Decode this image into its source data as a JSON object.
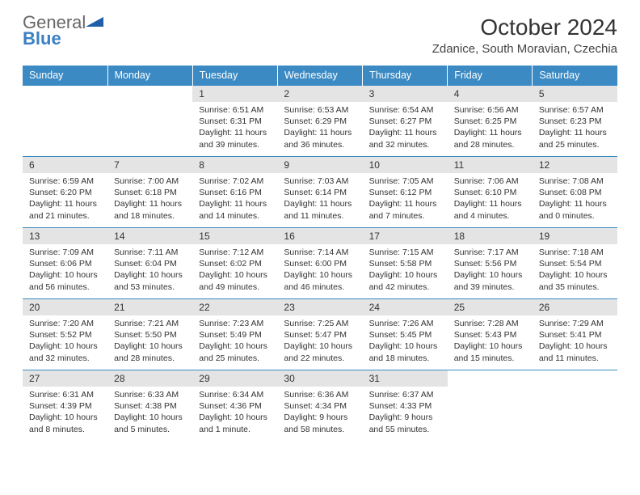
{
  "logo": {
    "text1": "General",
    "text2": "Blue"
  },
  "title": "October 2024",
  "location": "Zdanice, South Moravian, Czechia",
  "colors": {
    "header_bg": "#3b8ac4",
    "header_text": "#ffffff",
    "daynum_bg": "#e4e4e4",
    "border": "#3b8ac4",
    "logo_gray": "#666666",
    "logo_blue": "#3b7fc4"
  },
  "weekdays": [
    "Sunday",
    "Monday",
    "Tuesday",
    "Wednesday",
    "Thursday",
    "Friday",
    "Saturday"
  ],
  "weeks": [
    [
      null,
      null,
      {
        "n": "1",
        "sr": "6:51 AM",
        "ss": "6:31 PM",
        "dl": "11 hours and 39 minutes."
      },
      {
        "n": "2",
        "sr": "6:53 AM",
        "ss": "6:29 PM",
        "dl": "11 hours and 36 minutes."
      },
      {
        "n": "3",
        "sr": "6:54 AM",
        "ss": "6:27 PM",
        "dl": "11 hours and 32 minutes."
      },
      {
        "n": "4",
        "sr": "6:56 AM",
        "ss": "6:25 PM",
        "dl": "11 hours and 28 minutes."
      },
      {
        "n": "5",
        "sr": "6:57 AM",
        "ss": "6:23 PM",
        "dl": "11 hours and 25 minutes."
      }
    ],
    [
      {
        "n": "6",
        "sr": "6:59 AM",
        "ss": "6:20 PM",
        "dl": "11 hours and 21 minutes."
      },
      {
        "n": "7",
        "sr": "7:00 AM",
        "ss": "6:18 PM",
        "dl": "11 hours and 18 minutes."
      },
      {
        "n": "8",
        "sr": "7:02 AM",
        "ss": "6:16 PM",
        "dl": "11 hours and 14 minutes."
      },
      {
        "n": "9",
        "sr": "7:03 AM",
        "ss": "6:14 PM",
        "dl": "11 hours and 11 minutes."
      },
      {
        "n": "10",
        "sr": "7:05 AM",
        "ss": "6:12 PM",
        "dl": "11 hours and 7 minutes."
      },
      {
        "n": "11",
        "sr": "7:06 AM",
        "ss": "6:10 PM",
        "dl": "11 hours and 4 minutes."
      },
      {
        "n": "12",
        "sr": "7:08 AM",
        "ss": "6:08 PM",
        "dl": "11 hours and 0 minutes."
      }
    ],
    [
      {
        "n": "13",
        "sr": "7:09 AM",
        "ss": "6:06 PM",
        "dl": "10 hours and 56 minutes."
      },
      {
        "n": "14",
        "sr": "7:11 AM",
        "ss": "6:04 PM",
        "dl": "10 hours and 53 minutes."
      },
      {
        "n": "15",
        "sr": "7:12 AM",
        "ss": "6:02 PM",
        "dl": "10 hours and 49 minutes."
      },
      {
        "n": "16",
        "sr": "7:14 AM",
        "ss": "6:00 PM",
        "dl": "10 hours and 46 minutes."
      },
      {
        "n": "17",
        "sr": "7:15 AM",
        "ss": "5:58 PM",
        "dl": "10 hours and 42 minutes."
      },
      {
        "n": "18",
        "sr": "7:17 AM",
        "ss": "5:56 PM",
        "dl": "10 hours and 39 minutes."
      },
      {
        "n": "19",
        "sr": "7:18 AM",
        "ss": "5:54 PM",
        "dl": "10 hours and 35 minutes."
      }
    ],
    [
      {
        "n": "20",
        "sr": "7:20 AM",
        "ss": "5:52 PM",
        "dl": "10 hours and 32 minutes."
      },
      {
        "n": "21",
        "sr": "7:21 AM",
        "ss": "5:50 PM",
        "dl": "10 hours and 28 minutes."
      },
      {
        "n": "22",
        "sr": "7:23 AM",
        "ss": "5:49 PM",
        "dl": "10 hours and 25 minutes."
      },
      {
        "n": "23",
        "sr": "7:25 AM",
        "ss": "5:47 PM",
        "dl": "10 hours and 22 minutes."
      },
      {
        "n": "24",
        "sr": "7:26 AM",
        "ss": "5:45 PM",
        "dl": "10 hours and 18 minutes."
      },
      {
        "n": "25",
        "sr": "7:28 AM",
        "ss": "5:43 PM",
        "dl": "10 hours and 15 minutes."
      },
      {
        "n": "26",
        "sr": "7:29 AM",
        "ss": "5:41 PM",
        "dl": "10 hours and 11 minutes."
      }
    ],
    [
      {
        "n": "27",
        "sr": "6:31 AM",
        "ss": "4:39 PM",
        "dl": "10 hours and 8 minutes."
      },
      {
        "n": "28",
        "sr": "6:33 AM",
        "ss": "4:38 PM",
        "dl": "10 hours and 5 minutes."
      },
      {
        "n": "29",
        "sr": "6:34 AM",
        "ss": "4:36 PM",
        "dl": "10 hours and 1 minute."
      },
      {
        "n": "30",
        "sr": "6:36 AM",
        "ss": "4:34 PM",
        "dl": "9 hours and 58 minutes."
      },
      {
        "n": "31",
        "sr": "6:37 AM",
        "ss": "4:33 PM",
        "dl": "9 hours and 55 minutes."
      },
      null,
      null
    ]
  ],
  "labels": {
    "sunrise": "Sunrise:",
    "sunset": "Sunset:",
    "daylight": "Daylight:"
  }
}
